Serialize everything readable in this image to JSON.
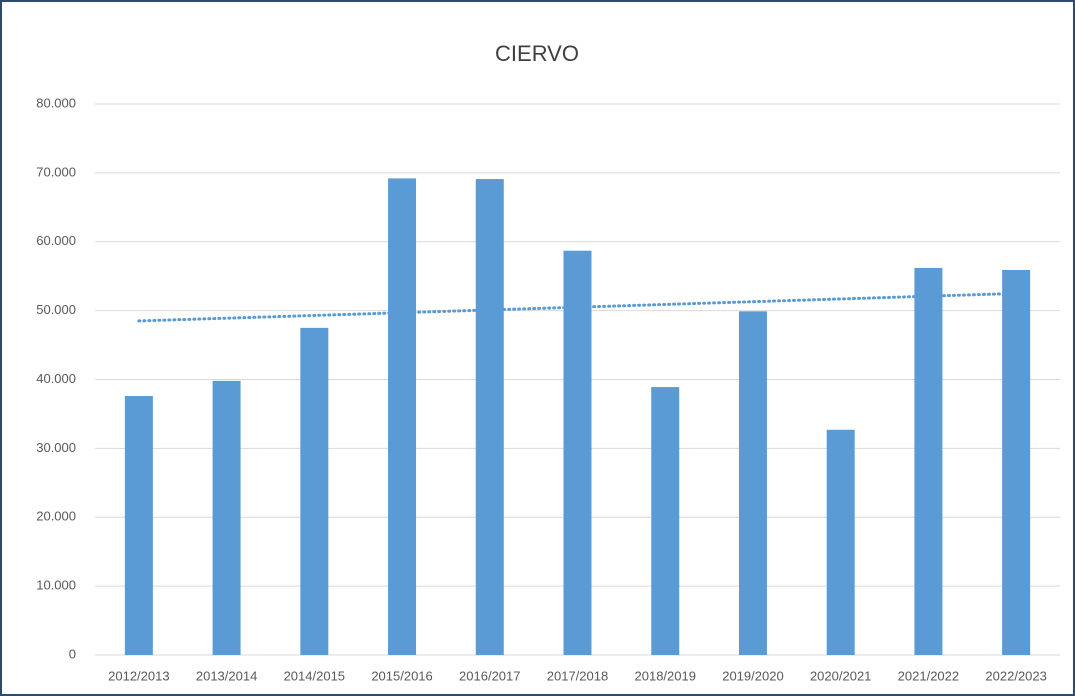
{
  "chart_data": {
    "type": "bar",
    "title": "CIERVO",
    "categories": [
      "2012/2013",
      "2013/2014",
      "2014/2015",
      "2015/2016",
      "2016/2017",
      "2017/2018",
      "2018/2019",
      "2019/2020",
      "2020/2021",
      "2021/2022",
      "2022/2023"
    ],
    "values": [
      37600,
      39800,
      47500,
      69200,
      69100,
      58700,
      38900,
      49900,
      32700,
      56200,
      55900
    ],
    "color": "#5b9bd5",
    "trendline": "linear",
    "ylim": [
      0,
      80000
    ],
    "yticks": [
      0,
      {
        "value": 10000,
        "label": "10.000"
      },
      {
        "value": 20000,
        "label": "20.000"
      },
      {
        "value": 30000,
        "label": "30.000"
      },
      {
        "value": 40000,
        "label": "40.000"
      },
      {
        "value": 50000,
        "label": "50.000"
      },
      {
        "value": 60000,
        "label": "60.000"
      },
      {
        "value": 70000,
        "label": "70.000"
      },
      {
        "value": 80000,
        "label": "80.000"
      }
    ],
    "grid": true
  }
}
